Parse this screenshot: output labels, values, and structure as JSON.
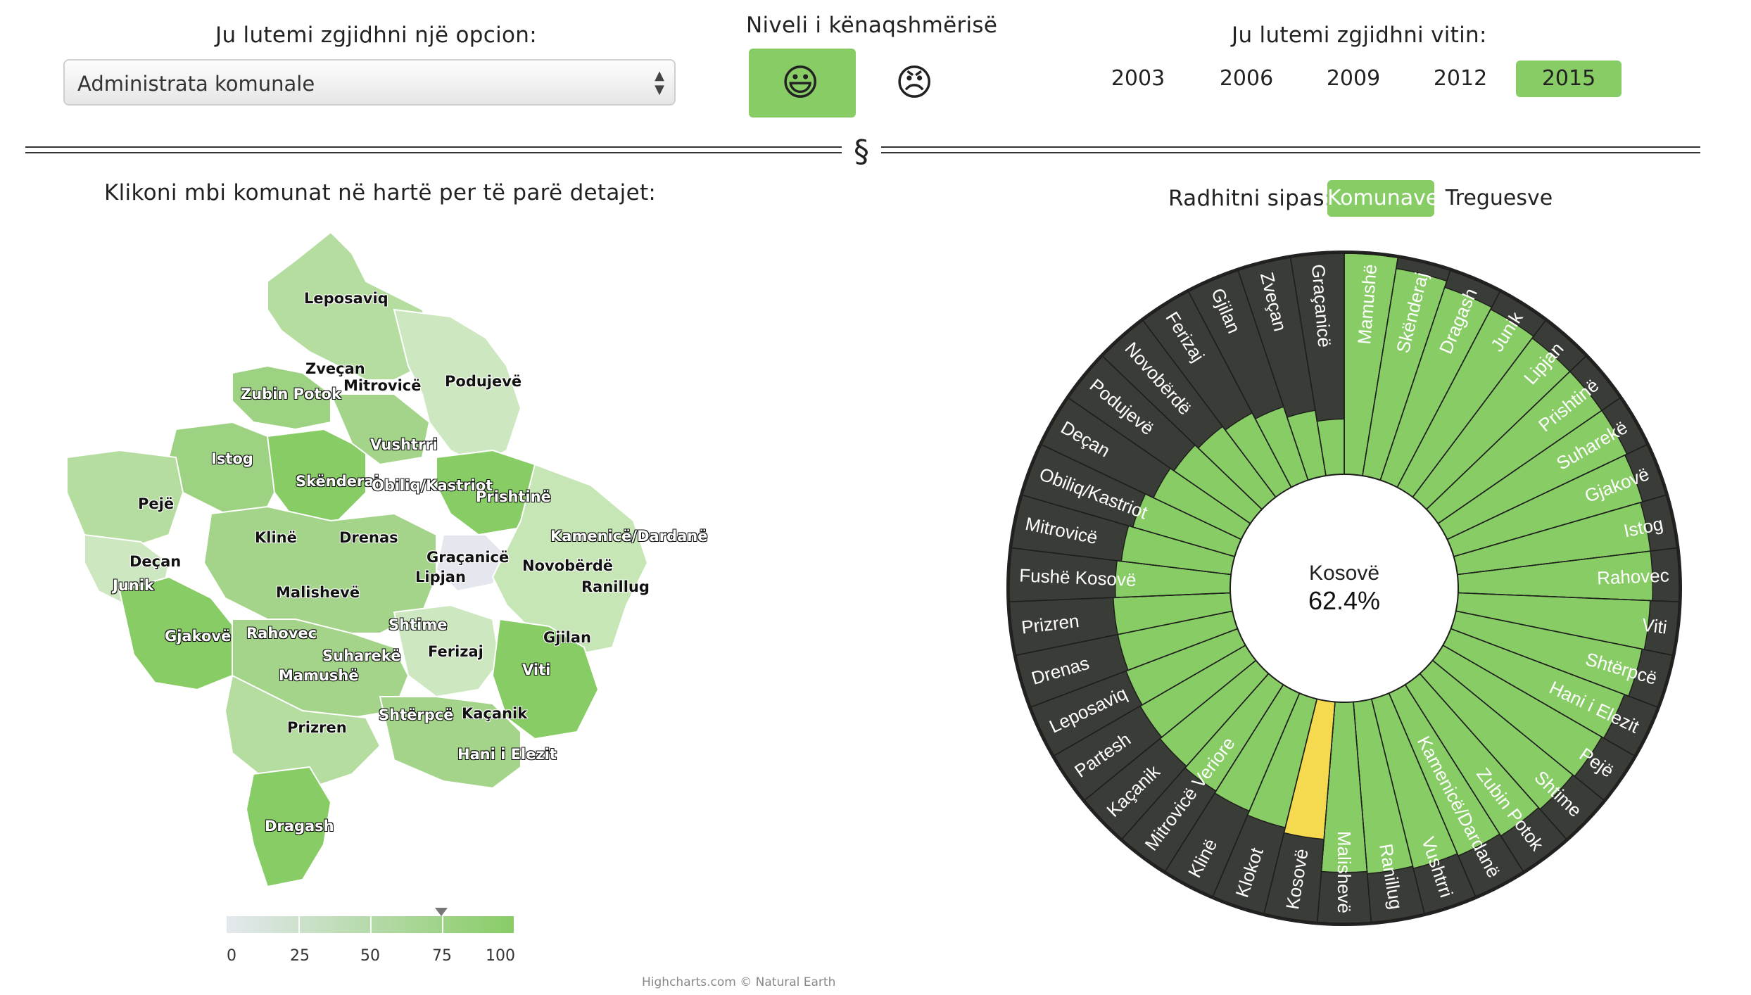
{
  "header": {
    "option_label": "Ju lutemi zgjidhni një opcion:",
    "option_selected": "Administrata komunale",
    "satisfaction_label": "Niveli i kënaqshmërisë",
    "satisfied_icon": "😃",
    "unsatisfied_icon": "😠",
    "year_label": "Ju lutemi zgjidhni vitin:",
    "years": [
      "2003",
      "2006",
      "2009",
      "2012",
      "2015"
    ],
    "selected_year": "2015",
    "divider_symbol": "§"
  },
  "map": {
    "title": "Klikoni mbi komunat në hartë per të parë detajet:",
    "municipality_labels": [
      "Leposaviq",
      "Zveçan",
      "Mitrovicë",
      "Podujevë",
      "Zubin Potok",
      "Vushtrri",
      "Istog",
      "Skënderaj",
      "Obiliq/Kastriot",
      "Prishtinë",
      "Pejë",
      "Klinë",
      "Drenas",
      "Kamenicë/Dardanë",
      "Deçan",
      "Graçanicë",
      "Novobërdë",
      "Lipjan",
      "Junik",
      "Ranillug",
      "Malishevë",
      "Shtime",
      "Gjilan",
      "Gjakovë",
      "Rahovec",
      "Suharekë",
      "Ferizaj",
      "Mamushë",
      "Viti",
      "Prizren",
      "Shtërpcë",
      "Kaçanik",
      "Hani i Elezit",
      "Dragash"
    ],
    "legend_ticks": [
      "0",
      "25",
      "50",
      "75",
      "100"
    ],
    "legend_marker_value": 75,
    "credit": "Highcharts.com © Natural Earth"
  },
  "sort": {
    "label": "Radhitni sipas:",
    "options": [
      "Komunave",
      "Treguesve"
    ],
    "selected": "Komunave"
  },
  "chart_data": {
    "type": "bar",
    "layout": "radial",
    "center_label": "Kosovë",
    "center_value": "62.4%",
    "ylim": [
      0,
      100
    ],
    "colors": {
      "bar": "#88cc66",
      "highlight": "#f5d94e",
      "background": "#3a3c37"
    },
    "highlight_category": "Kosovë",
    "categories": [
      "Mamushë",
      "Skënderaj",
      "Dragash",
      "Junik",
      "Lipjan",
      "Prishtinë",
      "Suharekë",
      "Gjakovë",
      "Istog",
      "Rahovec",
      "Viti",
      "Shtërpcë",
      "Hani i Elezit",
      "Pejë",
      "Shtime",
      "Zubin Potok",
      "Kamenicë/Dardanë",
      "Vushtrri",
      "Ranillug",
      "Malishevë",
      "Kosovë",
      "Klokot",
      "Klinë",
      "Mitrovicë Veriore",
      "Kaçanik",
      "Partesh",
      "Leposaviq",
      "Drenas",
      "Prizren",
      "Fushë Kosovë",
      "Mitrovicë",
      "Obiliq/Kastriot",
      "Deçan",
      "Podujevë",
      "Novobërdë",
      "Ferizaj",
      "Gjilan",
      "Zveçan",
      "Graçanicë"
    ],
    "values": [
      100,
      95,
      92,
      91,
      90,
      90,
      90,
      89,
      88,
      88,
      87,
      86,
      84,
      83,
      82,
      81,
      80,
      79,
      78,
      77,
      62.4,
      60,
      58,
      57,
      56,
      55,
      54,
      53,
      53,
      52,
      50,
      48,
      44,
      42,
      40,
      38,
      35,
      30,
      25
    ]
  }
}
